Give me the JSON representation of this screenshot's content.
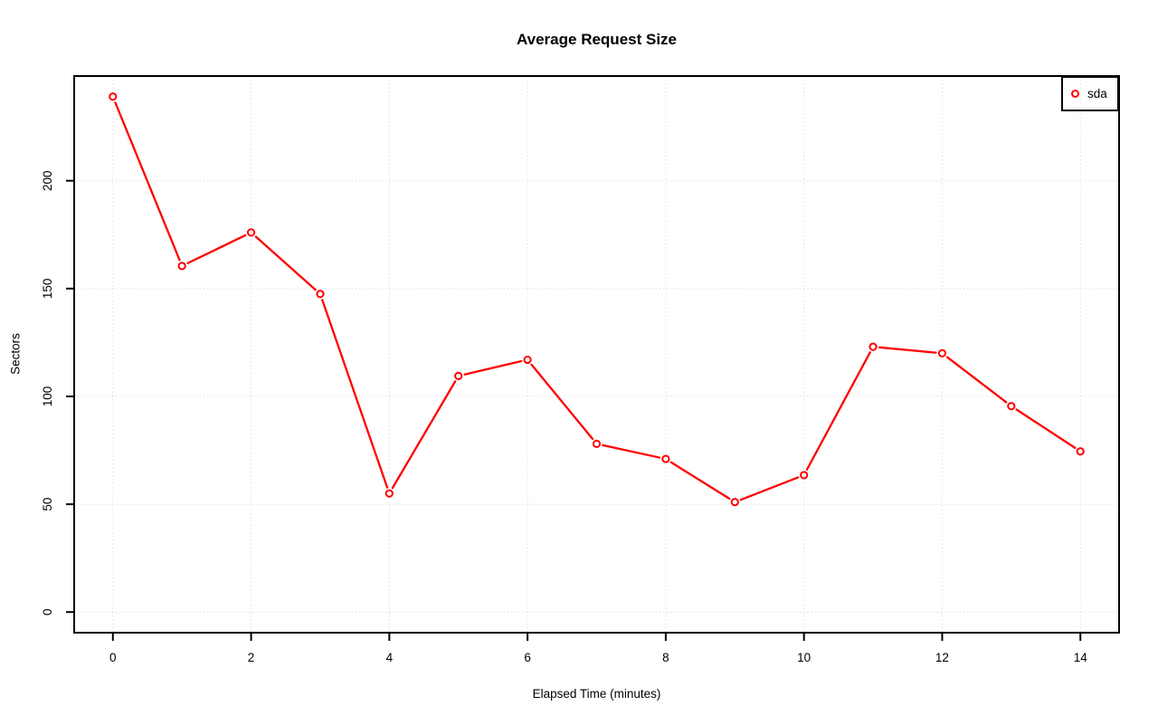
{
  "chart_data": {
    "type": "line",
    "title": "Average Request Size",
    "xlabel": "Elapsed Time (minutes)",
    "ylabel": "Sectors",
    "x": [
      0,
      1,
      2,
      3,
      4,
      5,
      6,
      7,
      8,
      9,
      10,
      11,
      12,
      13,
      14
    ],
    "series": [
      {
        "name": "sda",
        "color": "#ff0000",
        "marker": "open-circle",
        "line_style": "points-with-segments",
        "values": [
          239,
          160.5,
          176,
          147.5,
          55,
          109.5,
          117,
          78,
          71,
          51,
          63.5,
          123,
          120,
          95.5,
          74.5
        ]
      }
    ],
    "x_ticks": [
      0,
      2,
      4,
      6,
      8,
      10,
      12,
      14
    ],
    "y_ticks": [
      0,
      50,
      100,
      150,
      200
    ],
    "xlim": [
      0,
      14
    ],
    "ylim": [
      0,
      239
    ],
    "grid": true,
    "grid_style": "dotted",
    "grid_color": "#d3d3d3",
    "axis_color": "#000000",
    "background": "#ffffff",
    "legend": {
      "position": "topright",
      "entries": [
        {
          "label": "sda",
          "color": "#ff0000"
        }
      ]
    }
  }
}
